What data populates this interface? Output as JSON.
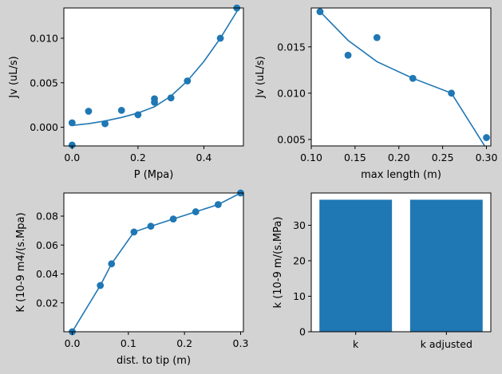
{
  "colors": {
    "background": "#d3d3d3",
    "series": "#1f77b4",
    "axes_face": "#ffffff"
  },
  "chart_data": [
    {
      "type": "scatter",
      "xlabel": "P (Mpa)",
      "ylabel": "Jv (uL/s)",
      "xlim": [
        -0.025,
        0.52
      ],
      "ylim": [
        -0.0021,
        0.0134
      ],
      "xticks": [
        0.0,
        0.2,
        0.4
      ],
      "xtick_labels": [
        "0.0",
        "0.2",
        "0.4"
      ],
      "yticks": [
        0.0,
        0.005,
        0.01
      ],
      "ytick_labels": [
        "0.000",
        "0.005",
        "0.010"
      ],
      "points": [
        [
          0.0,
          0.0005
        ],
        [
          0.0,
          -0.002
        ],
        [
          0.05,
          0.0018
        ],
        [
          0.1,
          0.0004
        ],
        [
          0.15,
          0.0019
        ],
        [
          0.2,
          0.0014
        ],
        [
          0.25,
          0.0032
        ],
        [
          0.25,
          0.0028
        ],
        [
          0.3,
          0.0033
        ],
        [
          0.35,
          0.0052
        ],
        [
          0.45,
          0.01
        ],
        [
          0.5,
          0.0134
        ]
      ],
      "fit_line": [
        [
          0.0,
          0.0002
        ],
        [
          0.05,
          0.0004
        ],
        [
          0.1,
          0.0007
        ],
        [
          0.15,
          0.0011
        ],
        [
          0.2,
          0.0016
        ],
        [
          0.25,
          0.0023
        ],
        [
          0.3,
          0.0035
        ],
        [
          0.35,
          0.0052
        ],
        [
          0.4,
          0.0074
        ],
        [
          0.45,
          0.01
        ],
        [
          0.5,
          0.013
        ],
        [
          0.52,
          0.0142
        ]
      ]
    },
    {
      "type": "scatter",
      "xlabel": "max length (m)",
      "ylabel": "Jv (uL/s)",
      "xlim": [
        0.1,
        0.305
      ],
      "ylim": [
        0.0043,
        0.0192
      ],
      "xticks": [
        0.1,
        0.15,
        0.2,
        0.25,
        0.3
      ],
      "xtick_labels": [
        "0.10",
        "0.15",
        "0.20",
        "0.25",
        "0.30"
      ],
      "yticks": [
        0.005,
        0.01,
        0.015
      ],
      "ytick_labels": [
        "0.005",
        "0.010",
        "0.015"
      ],
      "points": [
        [
          0.11,
          0.0188
        ],
        [
          0.142,
          0.0141
        ],
        [
          0.175,
          0.016
        ],
        [
          0.216,
          0.0116
        ],
        [
          0.26,
          0.01
        ],
        [
          0.3,
          0.0052
        ]
      ],
      "fit_line": [
        [
          0.11,
          0.0188
        ],
        [
          0.142,
          0.0157
        ],
        [
          0.175,
          0.0134
        ],
        [
          0.216,
          0.0116
        ],
        [
          0.26,
          0.01
        ],
        [
          0.3,
          0.004
        ]
      ]
    },
    {
      "type": "line",
      "xlabel": "dist. to tip (m)",
      "ylabel": "K (10-9 m4/(s.Mpa)",
      "xlim": [
        -0.015,
        0.305
      ],
      "ylim": [
        0.0,
        0.096
      ],
      "xticks": [
        0.0,
        0.1,
        0.2,
        0.3
      ],
      "xtick_labels": [
        "0.0",
        "0.1",
        "0.2",
        "0.3"
      ],
      "yticks": [
        0.02,
        0.04,
        0.06,
        0.08
      ],
      "ytick_labels": [
        "0.02",
        "0.04",
        "0.06",
        "0.08"
      ],
      "points": [
        [
          0.0,
          0.0
        ],
        [
          0.05,
          0.032
        ],
        [
          0.07,
          0.047
        ],
        [
          0.11,
          0.069
        ],
        [
          0.14,
          0.073
        ],
        [
          0.18,
          0.078
        ],
        [
          0.22,
          0.083
        ],
        [
          0.26,
          0.088
        ],
        [
          0.3,
          0.096
        ]
      ]
    },
    {
      "type": "bar",
      "ylabel": "k (10-9 m/(s.MPa)",
      "categories": [
        "k",
        "k adjusted"
      ],
      "values": [
        37.2,
        37.2
      ],
      "ylim": [
        0,
        39.1
      ],
      "yticks": [
        0,
        10,
        20,
        30
      ],
      "ytick_labels": [
        "0",
        "10",
        "20",
        "30"
      ]
    }
  ]
}
